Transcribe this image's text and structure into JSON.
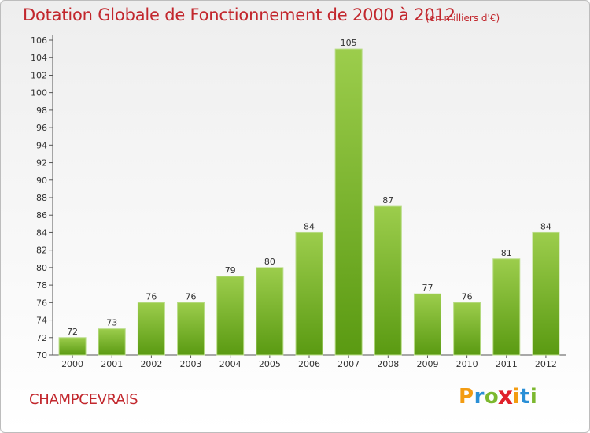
{
  "header": {
    "title": "Dotation Globale de Fonctionnement de 2000 à 2012",
    "unit_note": "(en milliers d'€)"
  },
  "footer": {
    "commune": "CHAMPCEVRAIS",
    "logo_letters": [
      "P",
      "r",
      "o",
      "x",
      "i",
      "t",
      "i"
    ],
    "logo_colors": [
      "#f39c12",
      "#2a8fd6",
      "#7cb82f",
      "#e0202a",
      "#f39c12",
      "#2a8fd6",
      "#7cb82f"
    ]
  },
  "chart_data": {
    "type": "bar",
    "title": "Dotation Globale de Fonctionnement de 2000 à 2012",
    "subtitle": "(en milliers d'€)",
    "categories": [
      "2000",
      "2001",
      "2002",
      "2003",
      "2004",
      "2005",
      "2006",
      "2007",
      "2008",
      "2009",
      "2010",
      "2011",
      "2012"
    ],
    "values": [
      72,
      73,
      76,
      76,
      79,
      80,
      84,
      105,
      87,
      77,
      76,
      81,
      84
    ],
    "ylim": [
      70,
      106
    ],
    "ytick_step": 2,
    "grid": false,
    "bar_color_top": "#9ccd4c",
    "bar_color_bottom": "#5a9a12"
  }
}
